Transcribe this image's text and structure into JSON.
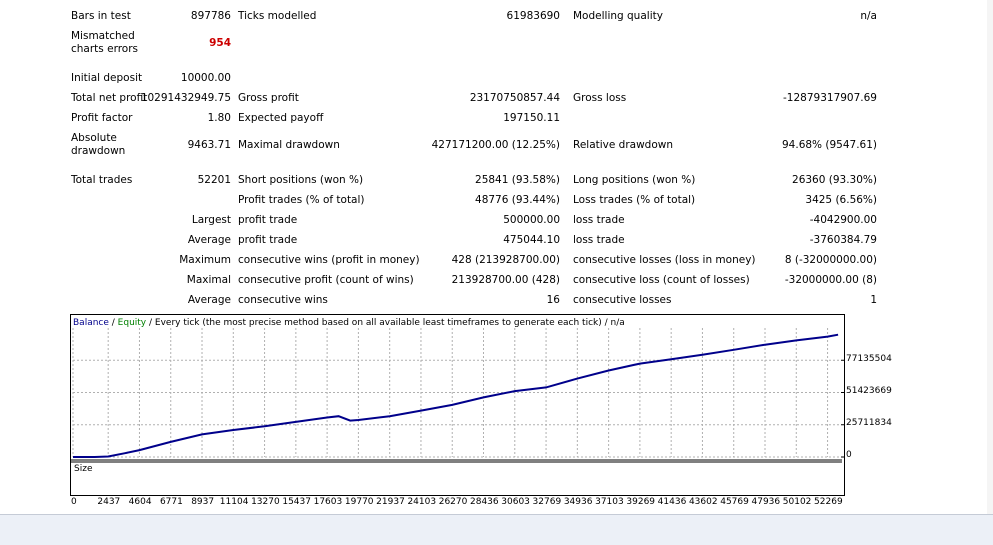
{
  "summary": {
    "bars_in_test": {
      "label": "Bars in test",
      "value": "897786"
    },
    "ticks_modelled": {
      "label": "Ticks modelled",
      "value": "61983690"
    },
    "modelling_quality": {
      "label": "Modelling quality",
      "value": "n/a"
    },
    "mismatched": {
      "label_line1": "Mismatched",
      "label_line2": "charts errors",
      "value": "954"
    },
    "initial_deposit": {
      "label": "Initial deposit",
      "value": "10000.00"
    },
    "total_net_profit": {
      "label": "Total net profit",
      "value": "10291432949.75"
    },
    "gross_profit": {
      "label": "Gross profit",
      "value": "23170750857.44"
    },
    "gross_loss": {
      "label": "Gross loss",
      "value": "-12879317907.69"
    },
    "profit_factor": {
      "label": "Profit factor",
      "value": "1.80"
    },
    "expected_payoff": {
      "label": "Expected payoff",
      "value": "197150.11"
    },
    "absolute_drawdown": {
      "label_line1": "Absolute",
      "label_line2": "drawdown",
      "value": "9463.71"
    },
    "maximal_drawdown": {
      "label": "Maximal drawdown",
      "value": "427171200.00 (12.25%)"
    },
    "relative_drawdown": {
      "label": "Relative drawdown",
      "value": "94.68% (9547.61)"
    },
    "total_trades": {
      "label": "Total trades",
      "value": "52201"
    },
    "short_positions": {
      "label": "Short positions (won %)",
      "value": "25841 (93.58%)"
    },
    "long_positions": {
      "label": "Long positions (won %)",
      "value": "26360 (93.30%)"
    },
    "profit_trades": {
      "label": "Profit trades (% of total)",
      "value": "48776 (93.44%)"
    },
    "loss_trades": {
      "label": "Loss trades (% of total)",
      "value": "3425 (6.56%)"
    },
    "largest": {
      "prefix": "Largest",
      "profit_label": "profit trade",
      "profit_value": "500000.00",
      "loss_label": "loss trade",
      "loss_value": "-4042900.00"
    },
    "average": {
      "prefix": "Average",
      "profit_label": "profit trade",
      "profit_value": "475044.10",
      "loss_label": "loss trade",
      "loss_value": "-3760384.79"
    },
    "maximum": {
      "prefix": "Maximum",
      "wins_label": "consecutive wins (profit in money)",
      "wins_value": "428 (213928700.00)",
      "losses_label": "consecutive losses (loss in money)",
      "losses_value": "8 (-32000000.00)"
    },
    "maximal": {
      "prefix": "Maximal",
      "wins_label": "consecutive profit (count of wins)",
      "wins_value": "213928700.00 (428)",
      "losses_label": "consecutive loss (count of losses)",
      "losses_value": "-32000000.00 (8)"
    },
    "average_consec": {
      "prefix": "Average",
      "wins_label": "consecutive wins",
      "wins_value": "16",
      "losses_label": "consecutive losses",
      "losses_value": "1"
    }
  },
  "chart": {
    "caption_balance": "Balance",
    "caption_sep1": " / ",
    "caption_equity": "Equity",
    "caption_rest": " / Every tick (the most precise method based on all available least timeframes to generate each tick) / n/a",
    "size_label": "Size",
    "colors": {
      "balance": "#00008b",
      "equity": "#008000",
      "grid": "#b0b0b0"
    }
  },
  "chart_data": {
    "type": "line",
    "title": "",
    "xlabel": "",
    "ylabel": "",
    "x_ticks": [
      "0",
      "2437",
      "4604",
      "6771",
      "8937",
      "11104",
      "13270",
      "15437",
      "17603",
      "19770",
      "21937",
      "24103",
      "26270",
      "28436",
      "30603",
      "32769",
      "34936",
      "37103",
      "39269",
      "41436",
      "43602",
      "45769",
      "47936",
      "50102",
      "52269"
    ],
    "y_ticks": [
      "77135504",
      "51423669",
      "25711834",
      "0"
    ],
    "grid": true,
    "series": [
      {
        "name": "Balance",
        "x": [
          0,
          1500,
          2437,
          3600,
          4604,
          6771,
          8937,
          11104,
          13270,
          15437,
          17603,
          18400,
          19200,
          19770,
          21937,
          24103,
          26270,
          28436,
          30603,
          32769,
          34936,
          37103,
          39269,
          41436,
          43602,
          45769,
          47936,
          50102,
          52269,
          53000
        ],
        "y": [
          0,
          0,
          400000,
          3000000,
          5500000,
          12000000,
          18000000,
          21500000,
          24500000,
          28000000,
          31500000,
          32500000,
          29000000,
          29500000,
          32500000,
          37000000,
          41500000,
          47500000,
          52500000,
          55500000,
          62500000,
          69000000,
          74500000,
          78000000,
          81500000,
          85500000,
          89500000,
          93000000,
          96000000,
          97500000
        ]
      }
    ]
  }
}
